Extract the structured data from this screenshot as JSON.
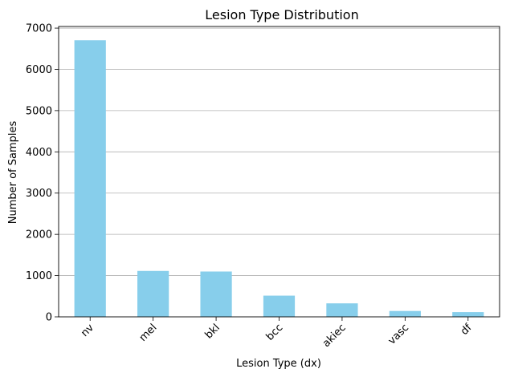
{
  "chart_data": {
    "type": "bar",
    "title": "Lesion Type Distribution",
    "xlabel": "Lesion Type (dx)",
    "ylabel": "Number of Samples",
    "categories": [
      "nv",
      "mel",
      "bkl",
      "bcc",
      "akiec",
      "vasc",
      "df"
    ],
    "values": [
      6705,
      1113,
      1099,
      514,
      327,
      142,
      115
    ],
    "ylim": [
      0,
      7040
    ],
    "yticks": [
      0,
      1000,
      2000,
      3000,
      4000,
      5000,
      6000,
      7000
    ],
    "grid": "y",
    "bar_color": "#87CEEB",
    "xtick_rotation": 45
  }
}
